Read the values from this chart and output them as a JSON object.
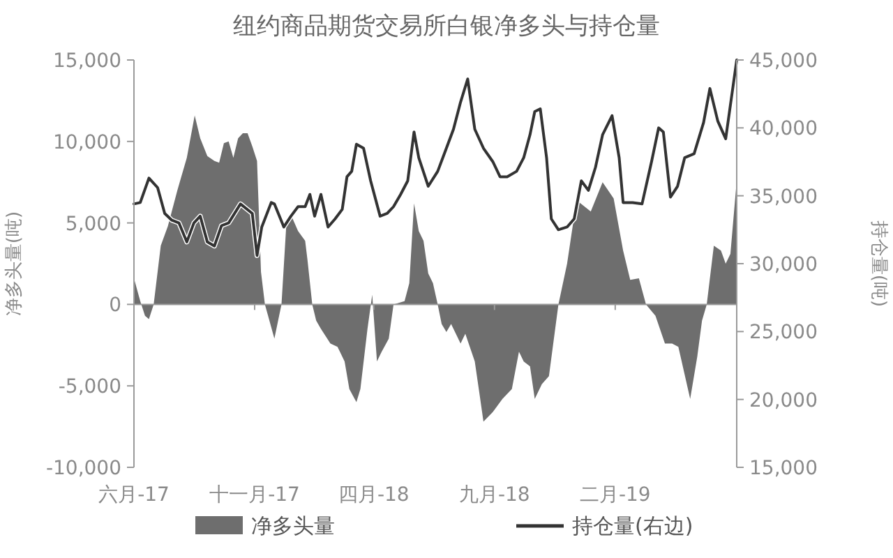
{
  "chart_data": {
    "type": "area",
    "title": "纽约商品期货交易所白银净多头与持仓量",
    "ylabel": "净多头量(吨)",
    "y2label": "持仓量(吨)",
    "xlim": [
      "2017-06-01",
      "2019-07-05"
    ],
    "xticks": [
      {
        "value": "2017-06-01",
        "label": "六月-17"
      },
      {
        "value": "2017-11-01",
        "label": "十一月-17"
      },
      {
        "value": "2018-04-01",
        "label": "四月-18"
      },
      {
        "value": "2018-09-01",
        "label": "九月-18"
      },
      {
        "value": "2019-02-01",
        "label": "二月-19"
      }
    ],
    "ylim": [
      -10000,
      15000
    ],
    "yticks": [
      {
        "value": -10000,
        "label": "-10,000"
      },
      {
        "value": -5000,
        "label": "-5,000"
      },
      {
        "value": 0,
        "label": "0"
      },
      {
        "value": 5000,
        "label": "5,000"
      },
      {
        "value": 10000,
        "label": "10,000"
      },
      {
        "value": 15000,
        "label": "15,000"
      }
    ],
    "y2lim": [
      15000,
      45000
    ],
    "y2ticks": [
      {
        "value": 15000,
        "label": "15,000"
      },
      {
        "value": 20000,
        "label": "20,000"
      },
      {
        "value": 25000,
        "label": "25,000"
      },
      {
        "value": 30000,
        "label": "30,000"
      },
      {
        "value": 35000,
        "label": "35,000"
      },
      {
        "value": 40000,
        "label": "40,000"
      },
      {
        "value": 45000,
        "label": "45,000"
      }
    ],
    "legend": "bottom",
    "series": [
      {
        "name": "净多头量",
        "color": "#6e6e6e",
        "x": [
          "2017-06-01",
          "2017-06-09",
          "2017-06-15",
          "2017-06-20",
          "2017-06-26",
          "2017-07-05",
          "2017-07-14",
          "2017-07-26",
          "2017-08-07",
          "2017-08-17",
          "2017-08-24",
          "2017-09-02",
          "2017-09-11",
          "2017-09-17",
          "2017-09-23",
          "2017-09-29",
          "2017-10-05",
          "2017-10-11",
          "2017-10-17",
          "2017-10-23",
          "2017-10-29",
          "2017-11-04",
          "2017-11-09",
          "2017-11-14",
          "2017-11-18",
          "2017-11-26",
          "2017-12-02",
          "2017-12-05",
          "2017-12-11",
          "2017-12-17",
          "2017-12-26",
          "2018-01-04",
          "2018-01-07",
          "2018-01-13",
          "2018-01-18",
          "2018-01-24",
          "2018-02-05",
          "2018-02-14",
          "2018-02-23",
          "2018-03-01",
          "2018-03-10",
          "2018-03-15",
          "2018-03-24",
          "2018-03-30",
          "2018-04-05",
          "2018-04-11",
          "2018-04-20",
          "2018-04-26",
          "2018-05-10",
          "2018-05-16",
          "2018-05-22",
          "2018-05-28",
          "2018-06-03",
          "2018-06-09",
          "2018-06-15",
          "2018-06-21",
          "2018-06-26",
          "2018-07-02",
          "2018-07-08",
          "2018-07-20",
          "2018-07-26",
          "2018-08-07",
          "2018-08-13",
          "2018-08-18",
          "2018-08-30",
          "2018-09-11",
          "2018-09-23",
          "2018-10-02",
          "2018-10-08",
          "2018-10-16",
          "2018-10-22",
          "2018-10-31",
          "2018-11-09",
          "2018-11-21",
          "2018-12-02",
          "2018-12-14",
          "2019-01-01",
          "2019-01-16",
          "2019-01-30",
          "2019-02-11",
          "2019-02-20",
          "2019-03-03",
          "2019-03-12",
          "2019-03-24",
          "2019-04-05",
          "2019-04-14",
          "2019-04-22",
          "2019-05-07",
          "2019-05-16",
          "2019-05-22",
          "2019-05-28",
          "2019-06-06",
          "2019-06-15",
          "2019-06-21",
          "2019-06-27",
          "2019-07-05"
        ],
        "values": [
          1600,
          200,
          -700,
          -900,
          0,
          3600,
          4800,
          7000,
          9000,
          11600,
          10200,
          9100,
          8800,
          8700,
          9900,
          10000,
          9000,
          10200,
          10500,
          10500,
          9700,
          8800,
          2000,
          0,
          -700,
          -2100,
          -700,
          0,
          4800,
          5500,
          4500,
          3900,
          2700,
          0,
          -1000,
          -1500,
          -2400,
          -2600,
          -3500,
          -5200,
          -6000,
          -5200,
          -1500,
          600,
          -3500,
          -2900,
          -2100,
          0,
          200,
          1300,
          6200,
          4500,
          3900,
          1900,
          1300,
          0,
          -1200,
          -1700,
          -1200,
          -2400,
          -1800,
          -3500,
          -5500,
          -7200,
          -6600,
          -5800,
          -5200,
          -2900,
          -3500,
          -3800,
          -5800,
          -4900,
          -4400,
          0,
          2500,
          6400,
          5700,
          7500,
          6500,
          3300,
          1500,
          1600,
          0,
          -700,
          -2400,
          -2400,
          -2600,
          -5800,
          -3200,
          -1000,
          0,
          3600,
          3300,
          2500,
          3100,
          7600
        ]
      },
      {
        "name": "持仓量(右边)",
        "type": "line",
        "axis": "y2",
        "color": "#333333",
        "x": [
          "2017-06-01",
          "2017-06-09",
          "2017-06-20",
          "2017-07-01",
          "2017-07-10",
          "2017-07-19",
          "2017-07-28",
          "2017-08-07",
          "2017-08-16",
          "2017-08-24",
          "2017-09-02",
          "2017-09-11",
          "2017-09-20",
          "2017-09-29",
          "2017-10-14",
          "2017-10-29",
          "2017-11-04",
          "2017-11-10",
          "2017-11-22",
          "2017-11-26",
          "2017-12-08",
          "2017-12-17",
          "2017-12-26",
          "2018-01-04",
          "2018-01-10",
          "2018-01-16",
          "2018-01-24",
          "2018-02-02",
          "2018-02-11",
          "2018-02-20",
          "2018-02-26",
          "2018-03-04",
          "2018-03-10",
          "2018-03-19",
          "2018-03-28",
          "2018-04-09",
          "2018-04-18",
          "2018-04-26",
          "2018-05-05",
          "2018-05-14",
          "2018-05-22",
          "2018-05-28",
          "2018-06-09",
          "2018-06-21",
          "2018-07-02",
          "2018-07-11",
          "2018-07-20",
          "2018-07-29",
          "2018-08-07",
          "2018-08-18",
          "2018-08-30",
          "2018-09-08",
          "2018-09-17",
          "2018-09-29",
          "2018-10-08",
          "2018-10-16",
          "2018-10-22",
          "2018-10-29",
          "2018-11-06",
          "2018-11-12",
          "2018-11-21",
          "2018-12-02",
          "2018-12-11",
          "2018-12-20",
          "2018-12-29",
          "2019-01-07",
          "2019-01-16",
          "2019-01-28",
          "2019-02-06",
          "2019-02-11",
          "2019-02-23",
          "2019-03-07",
          "2019-03-19",
          "2019-03-28",
          "2019-04-03",
          "2019-04-12",
          "2019-04-21",
          "2019-04-30",
          "2019-05-12",
          "2019-05-24",
          "2019-06-01",
          "2019-06-11",
          "2019-06-21",
          "2019-07-05"
        ],
        "values": [
          34400,
          34500,
          36300,
          35600,
          33700,
          33200,
          33000,
          31600,
          33000,
          33500,
          31600,
          31300,
          32800,
          33000,
          34400,
          33700,
          30600,
          32700,
          34500,
          34400,
          32700,
          33500,
          34200,
          34200,
          35100,
          33500,
          35100,
          32700,
          33300,
          34000,
          36400,
          36800,
          38800,
          38500,
          36100,
          33500,
          33700,
          34200,
          35100,
          36100,
          39700,
          37800,
          35700,
          36800,
          38500,
          39900,
          41900,
          43600,
          39900,
          38500,
          37500,
          36400,
          36400,
          36800,
          37800,
          39500,
          41200,
          41400,
          37800,
          33300,
          32500,
          32700,
          33300,
          36100,
          35400,
          37100,
          39500,
          40900,
          37800,
          34500,
          34500,
          34400,
          37500,
          40000,
          39700,
          34900,
          35700,
          37800,
          38100,
          40400,
          42900,
          40500,
          39200,
          45000
        ]
      }
    ]
  }
}
